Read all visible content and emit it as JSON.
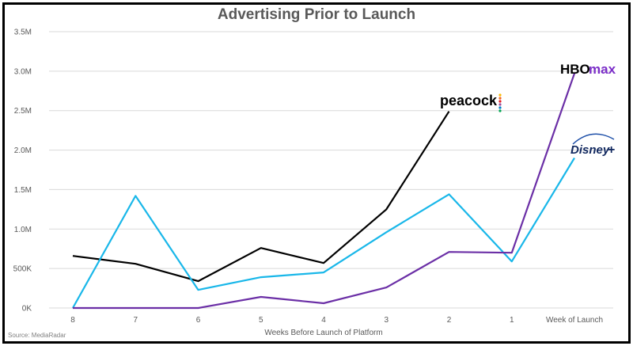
{
  "chart_data": {
    "type": "line",
    "title": "Advertising Prior to Launch",
    "xlabel": "Weeks Before Launch of Platform",
    "ylabel": "",
    "categories": [
      "8",
      "7",
      "6",
      "5",
      "4",
      "3",
      "2",
      "1",
      "Week of Launch"
    ],
    "y_ticks": [
      "0K",
      "500K",
      "1.0M",
      "1.5M",
      "2.0M",
      "2.5M",
      "3.0M",
      "3.5M"
    ],
    "ylim": [
      0,
      3500000
    ],
    "grid": true,
    "series": [
      {
        "name": "peacock",
        "color": "#000000",
        "values": [
          660000,
          560000,
          340000,
          760000,
          570000,
          1250000,
          2490000,
          null,
          null
        ]
      },
      {
        "name": "Disney+",
        "color": "#19b7e9",
        "values": [
          0,
          1420000,
          230000,
          390000,
          450000,
          960000,
          1440000,
          590000,
          1900000
        ]
      },
      {
        "name": "HBO max",
        "color": "#6b2fa6",
        "values": [
          0,
          0,
          0,
          140000,
          60000,
          260000,
          710000,
          700000,
          2970000
        ]
      }
    ],
    "source": "Source: MediaRadar"
  }
}
